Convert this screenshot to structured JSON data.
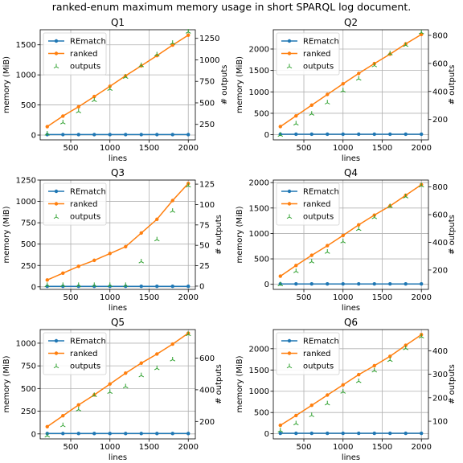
{
  "figure": {
    "suptitle": "ranked-enum maximum memory usage in short SPARQL log document."
  },
  "colors": {
    "rematch": "#1f77b4",
    "ranked": "#ff7f0e",
    "outputs": "#2ca02c",
    "grid": "#b0b0b0"
  },
  "chart_data": [
    {
      "type": "line",
      "title": "Q1",
      "xlabel": "lines",
      "ylabel": "memory (MiB)",
      "y2label": "# outputs",
      "x": [
        200,
        400,
        600,
        800,
        1000,
        1200,
        1400,
        1600,
        1800,
        2000
      ],
      "xticks": [
        500,
        1000,
        1500,
        2000
      ],
      "ylim": [
        -80,
        1750
      ],
      "yticks": [
        0,
        500,
        1000,
        1500
      ],
      "y2lim": [
        70,
        1350
      ],
      "y2ticks": [
        250,
        500,
        750,
        1000,
        1250
      ],
      "legend": "top-left",
      "grid": true,
      "series": [
        {
          "name": "REmatch",
          "axis": "left",
          "style": "line-marker",
          "values": [
            8,
            8,
            8,
            8,
            8,
            8,
            8,
            8,
            8,
            8
          ]
        },
        {
          "name": "ranked",
          "axis": "left",
          "style": "line-marker",
          "values": [
            140,
            315,
            470,
            640,
            810,
            985,
            1150,
            1320,
            1495,
            1660
          ]
        },
        {
          "name": "outputs",
          "axis": "right",
          "style": "tri-marker",
          "values": [
            140,
            270,
            400,
            530,
            660,
            800,
            935,
            1060,
            1195,
            1325
          ]
        }
      ]
    },
    {
      "type": "line",
      "title": "Q2",
      "xlabel": "lines",
      "ylabel": "memory (MiB)",
      "y2label": "# outputs",
      "x": [
        200,
        400,
        600,
        800,
        1000,
        1200,
        1400,
        1600,
        1800,
        2000
      ],
      "xticks": [
        500,
        1000,
        1500,
        2000
      ],
      "ylim": [
        -120,
        2450
      ],
      "yticks": [
        0,
        500,
        1000,
        1500,
        2000
      ],
      "y2lim": [
        55,
        840
      ],
      "y2ticks": [
        200,
        400,
        600,
        800
      ],
      "legend": "top-left",
      "grid": true,
      "series": [
        {
          "name": "REmatch",
          "axis": "left",
          "style": "line-marker",
          "values": [
            12,
            12,
            12,
            12,
            12,
            12,
            12,
            12,
            12,
            12
          ]
        },
        {
          "name": "ranked",
          "axis": "left",
          "style": "line-marker",
          "values": [
            190,
            440,
            690,
            940,
            1190,
            1430,
            1660,
            1880,
            2120,
            2340
          ]
        },
        {
          "name": "outputs",
          "axis": "right",
          "style": "tri-marker",
          "values": [
            90,
            170,
            240,
            320,
            405,
            490,
            585,
            670,
            730,
            820
          ]
        }
      ]
    },
    {
      "type": "line",
      "title": "Q3",
      "xlabel": "lines",
      "ylabel": "memory (MiB)",
      "y2label": "# outputs",
      "x": [
        200,
        400,
        600,
        800,
        1000,
        1200,
        1400,
        1600,
        1800,
        2000
      ],
      "xticks": [
        500,
        1000,
        1500,
        2000
      ],
      "ylim": [
        -30,
        1250
      ],
      "yticks": [
        0,
        250,
        500,
        750,
        1000,
        1250
      ],
      "y2lim": [
        -4,
        130
      ],
      "y2ticks": [
        0,
        25,
        50,
        75,
        100,
        125
      ],
      "legend": "top-left",
      "grid": true,
      "series": [
        {
          "name": "REmatch",
          "axis": "left",
          "style": "line-marker",
          "values": [
            6,
            6,
            6,
            6,
            6,
            6,
            6,
            6,
            6,
            6
          ]
        },
        {
          "name": "ranked",
          "axis": "left",
          "style": "line-marker",
          "values": [
            80,
            160,
            240,
            310,
            390,
            470,
            630,
            790,
            1010,
            1210
          ]
        },
        {
          "name": "outputs",
          "axis": "right",
          "style": "tri-marker",
          "values": [
            1,
            1,
            1,
            1,
            1,
            1,
            30,
            57,
            92,
            123
          ]
        }
      ]
    },
    {
      "type": "line",
      "title": "Q4",
      "xlabel": "lines",
      "ylabel": "memory (MiB)",
      "y2label": "# outputs",
      "x": [
        200,
        400,
        600,
        800,
        1000,
        1200,
        1400,
        1600,
        1800,
        2000
      ],
      "xticks": [
        500,
        1000,
        1500,
        2000
      ],
      "ylim": [
        -100,
        2050
      ],
      "yticks": [
        0,
        500,
        1000,
        1500,
        2000
      ],
      "y2lim": [
        60,
        850
      ],
      "y2ticks": [
        200,
        400,
        600,
        800
      ],
      "legend": "top-left",
      "grid": true,
      "series": [
        {
          "name": "REmatch",
          "axis": "left",
          "style": "line-marker",
          "values": [
            8,
            8,
            8,
            8,
            8,
            8,
            8,
            8,
            8,
            8
          ]
        },
        {
          "name": "ranked",
          "axis": "left",
          "style": "line-marker",
          "values": [
            160,
            370,
            570,
            760,
            960,
            1170,
            1360,
            1540,
            1750,
            1960
          ]
        },
        {
          "name": "outputs",
          "axis": "right",
          "style": "tri-marker",
          "values": [
            95,
            190,
            260,
            330,
            405,
            495,
            580,
            660,
            730,
            810
          ]
        }
      ]
    },
    {
      "type": "line",
      "title": "Q5",
      "xlabel": "lines",
      "ylabel": "memory (MiB)",
      "y2label": "# outputs",
      "x": [
        200,
        400,
        600,
        800,
        1000,
        1200,
        1400,
        1600,
        1800,
        2000
      ],
      "xticks": [
        500,
        1000,
        1500,
        2000
      ],
      "ylim": [
        -55,
        1150
      ],
      "yticks": [
        0,
        250,
        500,
        750,
        1000
      ],
      "y2lim": [
        90,
        780
      ],
      "y2ticks": [
        200,
        400,
        600
      ],
      "legend": "top-left",
      "grid": true,
      "series": [
        {
          "name": "REmatch",
          "axis": "left",
          "style": "line-marker",
          "values": [
            4,
            4,
            4,
            4,
            4,
            4,
            4,
            4,
            4,
            4
          ]
        },
        {
          "name": "ranked",
          "axis": "left",
          "style": "line-marker",
          "values": [
            80,
            200,
            320,
            430,
            550,
            670,
            780,
            880,
            990,
            1110
          ]
        },
        {
          "name": "outputs",
          "axis": "right",
          "style": "tri-marker",
          "values": [
            110,
            175,
            275,
            365,
            385,
            420,
            490,
            535,
            590,
            750
          ]
        }
      ]
    },
    {
      "type": "line",
      "title": "Q6",
      "xlabel": "lines",
      "ylabel": "memory (MiB)",
      "y2label": "# outputs",
      "x": [
        200,
        400,
        600,
        800,
        1000,
        1200,
        1400,
        1600,
        1800,
        2000
      ],
      "xticks": [
        500,
        1000,
        1500,
        2000
      ],
      "ylim": [
        -120,
        2450
      ],
      "yticks": [
        0,
        500,
        1000,
        1500,
        2000
      ],
      "y2lim": [
        25,
        490
      ],
      "y2ticks": [
        100,
        200,
        300,
        400
      ],
      "legend": "top-left",
      "grid": true,
      "series": [
        {
          "name": "REmatch",
          "axis": "left",
          "style": "line-marker",
          "values": [
            12,
            12,
            12,
            12,
            12,
            12,
            12,
            12,
            12,
            12
          ]
        },
        {
          "name": "ranked",
          "axis": "left",
          "style": "line-marker",
          "values": [
            200,
            430,
            670,
            910,
            1150,
            1390,
            1600,
            1820,
            2080,
            2330
          ]
        },
        {
          "name": "outputs",
          "axis": "right",
          "style": "tri-marker",
          "values": [
            60,
            90,
            125,
            175,
            225,
            270,
            315,
            360,
            410,
            460
          ]
        }
      ]
    }
  ]
}
